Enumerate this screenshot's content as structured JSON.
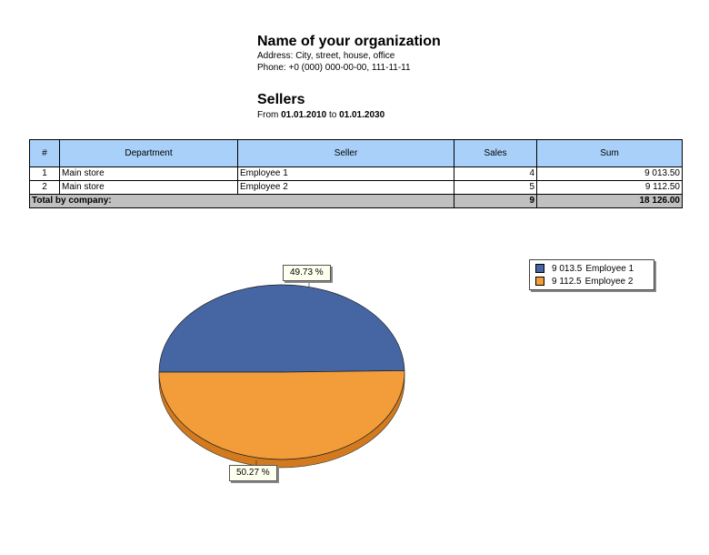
{
  "org": {
    "name": "Name of your organization",
    "address": "Address: City, street, house, office",
    "phone": "Phone: +0 (000) 000-00-00, 111-11-11"
  },
  "report": {
    "title": "Sellers",
    "period_from_label": "From",
    "period_from": "01.01.2010",
    "period_to_label": "to",
    "period_to": "01.01.2030"
  },
  "table": {
    "headers": [
      "#",
      "Department",
      "Seller",
      "Sales",
      "Sum"
    ],
    "rows": [
      {
        "num": "1",
        "department": "Main store",
        "seller": "Employee 1",
        "sales": "4",
        "sum": "9 013.50"
      },
      {
        "num": "2",
        "department": "Main store",
        "seller": "Employee 2",
        "sales": "5",
        "sum": "9 112.50"
      }
    ],
    "total": {
      "label": "Total by company:",
      "sales": "9",
      "sum": "18 126.00"
    }
  },
  "chart_data": {
    "type": "pie",
    "categories": [
      "Employee 1",
      "Employee 2"
    ],
    "values": [
      9013.5,
      9112.5
    ],
    "value_labels": [
      "9 013.5",
      "9 112.5"
    ],
    "percent_labels": [
      "49.73 %",
      "50.27 %"
    ],
    "colors": [
      "#4565a3",
      "#f39c3a"
    ],
    "side_colors": [
      "#2f4878",
      "#d37a1e"
    ],
    "legend": [
      "9 013.5",
      "9 112.5"
    ],
    "legend_position": "top-right",
    "style": "3d"
  }
}
